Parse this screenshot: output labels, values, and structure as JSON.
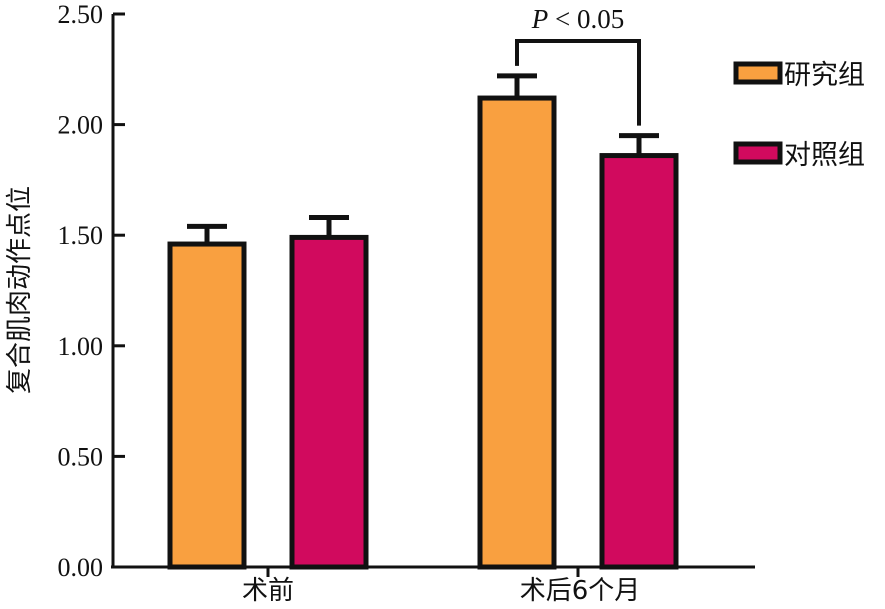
{
  "chart_data": {
    "type": "bar",
    "categories": [
      "术前",
      "术后6个月"
    ],
    "series": [
      {
        "name": "研究组",
        "color": "#F9A040",
        "values": [
          1.46,
          2.12
        ],
        "errors": [
          0.08,
          0.1
        ]
      },
      {
        "name": "对照组",
        "color": "#D10A5E",
        "values": [
          1.49,
          1.86
        ],
        "errors": [
          0.09,
          0.09
        ]
      }
    ],
    "title": "",
    "xlabel": "",
    "ylabel": "复合肌肉动作点位",
    "ylim": [
      0,
      2.5
    ],
    "yticks": [
      0,
      0.5,
      1.0,
      1.5,
      2.0,
      2.5
    ],
    "ytick_labels": [
      "0.00",
      "0.50",
      "1.00",
      "1.50",
      "2.00",
      "2.50"
    ],
    "legend_position": "right",
    "annotations": [
      {
        "text_italic": "P",
        "text_rest": " < 0.05",
        "between_category": "术后6个月"
      }
    ],
    "grid": false
  }
}
